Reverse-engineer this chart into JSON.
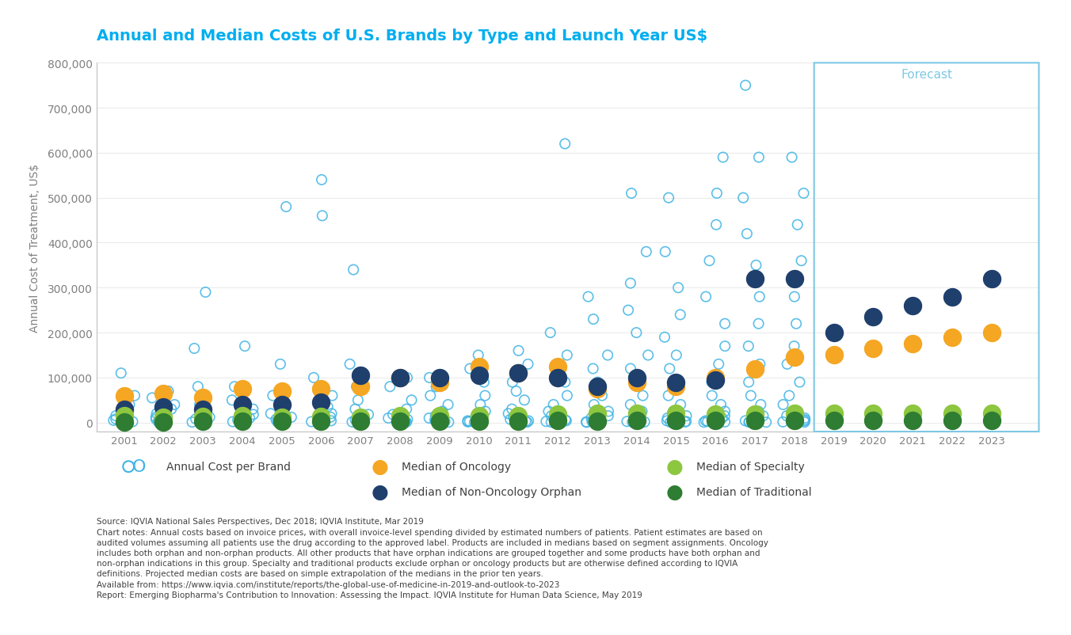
{
  "title": "Annual and Median Costs of U.S. Brands by Type and Launch Year US$",
  "title_color": "#00AEEF",
  "xlabel": "",
  "ylabel": "Annual Cost of Treatment, US$",
  "ylabel_color": "#808080",
  "ylim": [
    0,
    800000
  ],
  "xlim": [
    2000.3,
    2024.2
  ],
  "xticks": [
    2001,
    2002,
    2003,
    2004,
    2005,
    2006,
    2007,
    2008,
    2009,
    2010,
    2011,
    2012,
    2013,
    2014,
    2015,
    2016,
    2017,
    2018,
    2019,
    2020,
    2021,
    2022,
    2023
  ],
  "forecast_start": 2018.5,
  "forecast_label": "Forecast",
  "forecast_color": "#7EC8E3",
  "bg_color": "#ffffff",
  "scatter_color": "#40B4E5",
  "oncology_color": "#F5A623",
  "orphan_color": "#1F3F6D",
  "specialty_color": "#8DC63F",
  "traditional_color": "#2E7D32",
  "scatter_size": 80,
  "median_size": 250,
  "ytick_labels": [
    "0",
    "100,000",
    "200,000",
    "300,000",
    "400,000",
    "500,000",
    "600,000",
    "700,000",
    "800,000"
  ],
  "ytick_values": [
    0,
    100000,
    200000,
    300000,
    400000,
    500000,
    600000,
    700000,
    800000
  ],
  "source_text": "Source: IQVIA National Sales Perspectives, Dec 2018; IQVIA Institute, Mar 2019\nChart notes: Annual costs based on invoice prices, with overall invoice-level spending divided by estimated numbers of patients. Patient estimates are based on\naudited volumes assuming all patients use the drug according to the approved label. Products are included in medians based on segment assignments. Oncology\nincludes both orphan and non-orphan products. All other products that have orphan indications are grouped together and some products have both orphan and\nnon-orphan indications in this group. Specialty and traditional products exclude orphan or oncology products but are otherwise defined according to IQVIA\ndefinitions. Projected median costs are based on simple extrapolation of the medians in the prior ten years.\nAvailable from: https://www.iqvia.com/institute/reports/the-global-use-of-medicine-in-2019-and-outlook-to-2023\nReport: Emerging Biopharma's Contribution to Innovation: Assessing the Impact. IQVIA Institute for Human Data Science, May 2019",
  "scatter_data": {
    "x": [
      2001,
      2001,
      2001,
      2001,
      2001,
      2001,
      2001,
      2001,
      2001,
      2002,
      2002,
      2002,
      2002,
      2002,
      2002,
      2002,
      2002,
      2002,
      2002,
      2002,
      2003,
      2003,
      2003,
      2003,
      2003,
      2003,
      2003,
      2003,
      2003,
      2003,
      2004,
      2004,
      2004,
      2004,
      2004,
      2004,
      2004,
      2004,
      2005,
      2005,
      2005,
      2005,
      2005,
      2005,
      2005,
      2005,
      2005,
      2006,
      2006,
      2006,
      2006,
      2006,
      2006,
      2006,
      2006,
      2006,
      2006,
      2007,
      2007,
      2007,
      2007,
      2007,
      2007,
      2007,
      2007,
      2007,
      2007,
      2008,
      2008,
      2008,
      2008,
      2008,
      2008,
      2008,
      2008,
      2008,
      2008,
      2009,
      2009,
      2009,
      2009,
      2009,
      2009,
      2009,
      2009,
      2009,
      2009,
      2009,
      2009,
      2010,
      2010,
      2010,
      2010,
      2010,
      2010,
      2010,
      2010,
      2010,
      2010,
      2010,
      2010,
      2010,
      2010,
      2011,
      2011,
      2011,
      2011,
      2011,
      2011,
      2011,
      2011,
      2011,
      2011,
      2011,
      2011,
      2011,
      2012,
      2012,
      2012,
      2012,
      2012,
      2012,
      2012,
      2012,
      2012,
      2012,
      2012,
      2012,
      2012,
      2012,
      2012,
      2012,
      2013,
      2013,
      2013,
      2013,
      2013,
      2013,
      2013,
      2013,
      2013,
      2013,
      2013,
      2013,
      2013,
      2013,
      2013,
      2013,
      2013,
      2014,
      2014,
      2014,
      2014,
      2014,
      2014,
      2014,
      2014,
      2014,
      2014,
      2014,
      2014,
      2014,
      2014,
      2014,
      2014,
      2014,
      2014,
      2015,
      2015,
      2015,
      2015,
      2015,
      2015,
      2015,
      2015,
      2015,
      2015,
      2015,
      2015,
      2015,
      2015,
      2015,
      2015,
      2015,
      2015,
      2015,
      2016,
      2016,
      2016,
      2016,
      2016,
      2016,
      2016,
      2016,
      2016,
      2016,
      2016,
      2016,
      2016,
      2016,
      2016,
      2016,
      2016,
      2016,
      2016,
      2016,
      2017,
      2017,
      2017,
      2017,
      2017,
      2017,
      2017,
      2017,
      2017,
      2017,
      2017,
      2017,
      2017,
      2017,
      2017,
      2017,
      2017,
      2017,
      2017,
      2017,
      2017,
      2018,
      2018,
      2018,
      2018,
      2018,
      2018,
      2018,
      2018,
      2018,
      2018,
      2018,
      2018,
      2018,
      2018,
      2018,
      2018,
      2018,
      2018,
      2018,
      2018
    ],
    "y": [
      110000,
      60000,
      40000,
      25000,
      15000,
      8000,
      5000,
      2000,
      1000,
      70000,
      55000,
      40000,
      30000,
      20000,
      12000,
      8000,
      5000,
      3000,
      2000,
      1000,
      290000,
      165000,
      80000,
      40000,
      20000,
      12000,
      8000,
      5000,
      3000,
      1000,
      170000,
      80000,
      50000,
      30000,
      18000,
      10000,
      6000,
      2000,
      480000,
      130000,
      60000,
      35000,
      20000,
      12000,
      7000,
      4000,
      2000,
      540000,
      460000,
      100000,
      60000,
      35000,
      20000,
      12000,
      7000,
      4000,
      2000,
      340000,
      130000,
      80000,
      50000,
      30000,
      18000,
      10000,
      6000,
      3000,
      1500,
      100000,
      80000,
      50000,
      30000,
      18000,
      10000,
      7000,
      4000,
      2000,
      1000,
      100000,
      80000,
      60000,
      40000,
      25000,
      15000,
      10000,
      6000,
      4000,
      2500,
      1500,
      1000,
      150000,
      120000,
      90000,
      60000,
      40000,
      25000,
      15000,
      10000,
      6000,
      4000,
      2500,
      1500,
      1000,
      800,
      160000,
      130000,
      90000,
      70000,
      50000,
      30000,
      20000,
      12000,
      7000,
      4000,
      2500,
      1500,
      1000,
      620000,
      200000,
      150000,
      120000,
      90000,
      60000,
      40000,
      25000,
      15000,
      10000,
      6000,
      4000,
      2500,
      1500,
      1000,
      800,
      280000,
      230000,
      150000,
      120000,
      90000,
      60000,
      40000,
      25000,
      15000,
      10000,
      6000,
      4000,
      2500,
      1500,
      1000,
      800,
      600,
      510000,
      380000,
      310000,
      250000,
      200000,
      150000,
      120000,
      90000,
      60000,
      40000,
      25000,
      15000,
      10000,
      6000,
      4000,
      2500,
      1500,
      1000,
      500000,
      380000,
      300000,
      240000,
      190000,
      150000,
      120000,
      90000,
      60000,
      40000,
      25000,
      15000,
      10000,
      6000,
      4000,
      2500,
      1500,
      1000,
      800,
      590000,
      510000,
      440000,
      360000,
      280000,
      220000,
      170000,
      130000,
      90000,
      60000,
      40000,
      25000,
      15000,
      10000,
      6000,
      4000,
      2500,
      1500,
      1000,
      800,
      750000,
      590000,
      500000,
      420000,
      350000,
      280000,
      220000,
      170000,
      130000,
      90000,
      60000,
      40000,
      25000,
      15000,
      10000,
      6000,
      4000,
      2500,
      1500,
      1000,
      800,
      590000,
      510000,
      440000,
      360000,
      280000,
      220000,
      170000,
      130000,
      90000,
      60000,
      40000,
      25000,
      15000,
      10000,
      6000,
      4000,
      2500,
      1500,
      1000,
      800
    ]
  },
  "oncology_medians": {
    "x": [
      2001,
      2002,
      2003,
      2004,
      2005,
      2006,
      2007,
      2008,
      2009,
      2010,
      2011,
      2012,
      2013,
      2014,
      2015,
      2016,
      2017,
      2018,
      2019,
      2020,
      2021,
      2022,
      2023
    ],
    "y": [
      60000,
      65000,
      55000,
      75000,
      70000,
      75000,
      80000,
      100000,
      90000,
      125000,
      110000,
      125000,
      75000,
      90000,
      80000,
      100000,
      120000,
      145000,
      150000,
      165000,
      175000,
      190000,
      200000
    ]
  },
  "orphan_medians": {
    "x": [
      2001,
      2002,
      2003,
      2004,
      2005,
      2006,
      2007,
      2008,
      2009,
      2010,
      2011,
      2012,
      2013,
      2014,
      2015,
      2016,
      2017,
      2018,
      2019,
      2020,
      2021,
      2022,
      2023
    ],
    "y": [
      30000,
      35000,
      30000,
      40000,
      40000,
      45000,
      105000,
      100000,
      100000,
      105000,
      110000,
      100000,
      80000,
      100000,
      90000,
      95000,
      320000,
      320000,
      200000,
      235000,
      260000,
      280000,
      320000
    ]
  },
  "specialty_medians": {
    "x": [
      2001,
      2002,
      2003,
      2004,
      2005,
      2006,
      2007,
      2008,
      2009,
      2010,
      2011,
      2012,
      2013,
      2014,
      2015,
      2016,
      2017,
      2018,
      2019,
      2020,
      2021,
      2022,
      2023
    ],
    "y": [
      15000,
      12000,
      14000,
      15000,
      12000,
      14000,
      12000,
      15000,
      15000,
      15000,
      15000,
      18000,
      20000,
      20000,
      20000,
      18000,
      18000,
      20000,
      20000,
      20000,
      20000,
      20000,
      20000
    ]
  },
  "traditional_medians": {
    "x": [
      2001,
      2002,
      2003,
      2004,
      2005,
      2006,
      2007,
      2008,
      2009,
      2010,
      2011,
      2012,
      2013,
      2014,
      2015,
      2016,
      2017,
      2018,
      2019,
      2020,
      2021,
      2022,
      2023
    ],
    "y": [
      2000,
      2000,
      2500,
      2500,
      2500,
      2500,
      3000,
      3000,
      3000,
      3000,
      3000,
      4000,
      3000,
      4000,
      4000,
      4000,
      4000,
      5000,
      5000,
      5000,
      5000,
      5000,
      5000
    ]
  }
}
